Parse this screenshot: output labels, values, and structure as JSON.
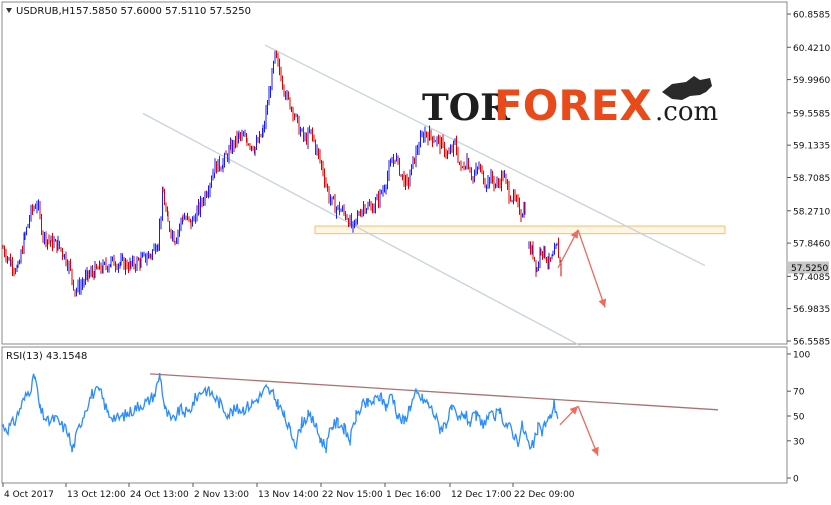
{
  "chart_data": [
    {
      "type": "candlestick",
      "symbol_header": "USDRUB,H1",
      "ohlc_label": "57.5850 57.6000 57.5110 57.5250",
      "y_ticks": [
        "60.8585",
        "60.4210",
        "59.9960",
        "59.5585",
        "59.1335",
        "58.7085",
        "58.2710",
        "57.8460",
        "57.4085",
        "56.9835",
        "56.5585"
      ],
      "y_values": [
        60.8585,
        60.421,
        59.996,
        59.5585,
        59.1335,
        58.7085,
        58.271,
        57.846,
        57.4085,
        56.9835,
        56.5585
      ],
      "current_price": "57.5250",
      "current_value": 57.525,
      "price_path": [
        [
          0,
          57.78
        ],
        [
          8,
          57.58
        ],
        [
          15,
          57.5
        ],
        [
          22,
          57.95
        ],
        [
          28,
          58.25
        ],
        [
          34,
          58.38
        ],
        [
          40,
          57.95
        ],
        [
          48,
          57.86
        ],
        [
          55,
          57.82
        ],
        [
          60,
          57.72
        ],
        [
          66,
          57.55
        ],
        [
          72,
          57.22
        ],
        [
          78,
          57.3
        ],
        [
          85,
          57.42
        ],
        [
          92,
          57.48
        ],
        [
          100,
          57.52
        ],
        [
          108,
          57.6
        ],
        [
          118,
          57.58
        ],
        [
          128,
          57.55
        ],
        [
          138,
          57.62
        ],
        [
          148,
          57.7
        ],
        [
          155,
          57.88
        ],
        [
          160,
          58.5
        ],
        [
          165,
          58.1
        ],
        [
          172,
          57.9
        ],
        [
          180,
          58.2
        ],
        [
          188,
          58.1
        ],
        [
          196,
          58.3
        ],
        [
          204,
          58.55
        ],
        [
          212,
          58.85
        ],
        [
          220,
          58.9
        ],
        [
          228,
          59.1
        ],
        [
          236,
          59.25
        ],
        [
          244,
          59.2
        ],
        [
          252,
          59.1
        ],
        [
          260,
          59.3
        ],
        [
          266,
          59.8
        ],
        [
          272,
          60.3
        ],
        [
          278,
          60.05
        ],
        [
          284,
          59.75
        ],
        [
          290,
          59.6
        ],
        [
          296,
          59.35
        ],
        [
          302,
          59.2
        ],
        [
          308,
          59.3
        ],
        [
          314,
          59.05
        ],
        [
          320,
          58.8
        ],
        [
          326,
          58.45
        ],
        [
          332,
          58.32
        ],
        [
          338,
          58.28
        ],
        [
          344,
          58.2
        ],
        [
          350,
          58.02
        ],
        [
          356,
          58.25
        ],
        [
          362,
          58.35
        ],
        [
          368,
          58.3
        ],
        [
          374,
          58.4
        ],
        [
          380,
          58.55
        ],
        [
          386,
          58.8
        ],
        [
          392,
          59.0
        ],
        [
          398,
          58.75
        ],
        [
          404,
          58.6
        ],
        [
          410,
          58.9
        ],
        [
          416,
          59.15
        ],
        [
          422,
          59.3
        ],
        [
          428,
          59.25
        ],
        [
          434,
          59.2
        ],
        [
          440,
          59.1
        ],
        [
          446,
          59.0
        ],
        [
          452,
          59.15
        ],
        [
          458,
          58.8
        ],
        [
          464,
          58.95
        ],
        [
          470,
          58.7
        ],
        [
          476,
          58.85
        ],
        [
          482,
          58.65
        ],
        [
          488,
          58.7
        ],
        [
          494,
          58.6
        ],
        [
          500,
          58.75
        ],
        [
          506,
          58.5
        ],
        [
          512,
          58.4
        ],
        [
          518,
          58.25
        ],
        [
          522,
          58.32
        ]
      ],
      "price_path_2": [
        [
          526,
          57.78
        ],
        [
          530,
          57.72
        ],
        [
          534,
          57.5
        ],
        [
          538,
          57.8
        ],
        [
          542,
          57.7
        ],
        [
          546,
          57.58
        ],
        [
          550,
          57.65
        ],
        [
          554,
          57.8
        ],
        [
          558,
          57.52
        ]
      ],
      "x_ticks": [
        "4 Oct 2017",
        "13 Oct 12:00",
        "24 Oct 13:00",
        "2 Nov 13:00",
        "13 Nov 14:00",
        "22 Nov 15:00",
        "1 Dec 16:00",
        "12 Dec 17:00",
        "22 Dec 09:00"
      ],
      "channel_upper": [
        [
          265,
          60.45
        ],
        [
          705,
          57.55
        ]
      ],
      "channel_lower": [
        [
          143,
          59.55
        ],
        [
          580,
          56.5
        ]
      ],
      "resistance_zone": {
        "from": 57.97,
        "to": 58.07,
        "x_from": 315,
        "x_to": 725
      },
      "forecast_arrows": [
        [
          [
            558,
            57.52
          ],
          [
            578,
            58.02
          ]
        ],
        [
          [
            578,
            58.02
          ],
          [
            605,
            57.0
          ]
        ]
      ]
    },
    {
      "type": "line",
      "label": "RSI(13) 43.1548",
      "y_ticks": [
        "100",
        "70",
        "50",
        "30",
        "0"
      ],
      "y_values": [
        100,
        70,
        50,
        30,
        0
      ],
      "rsi_path": [
        [
          2,
          42
        ],
        [
          8,
          40
        ],
        [
          15,
          46
        ],
        [
          22,
          60
        ],
        [
          30,
          72
        ],
        [
          35,
          82
        ],
        [
          40,
          55
        ],
        [
          48,
          45
        ],
        [
          55,
          48
        ],
        [
          62,
          42
        ],
        [
          68,
          38
        ],
        [
          72,
          22
        ],
        [
          78,
          38
        ],
        [
          85,
          55
        ],
        [
          92,
          68
        ],
        [
          100,
          70
        ],
        [
          108,
          52
        ],
        [
          118,
          48
        ],
        [
          128,
          52
        ],
        [
          138,
          58
        ],
        [
          148,
          62
        ],
        [
          155,
          68
        ],
        [
          160,
          84
        ],
        [
          165,
          55
        ],
        [
          172,
          45
        ],
        [
          180,
          55
        ],
        [
          188,
          52
        ],
        [
          196,
          65
        ],
        [
          204,
          72
        ],
        [
          212,
          68
        ],
        [
          220,
          60
        ],
        [
          228,
          52
        ],
        [
          236,
          55
        ],
        [
          244,
          56
        ],
        [
          252,
          60
        ],
        [
          260,
          66
        ],
        [
          266,
          72
        ],
        [
          272,
          68
        ],
        [
          278,
          60
        ],
        [
          284,
          50
        ],
        [
          290,
          38
        ],
        [
          296,
          28
        ],
        [
          302,
          45
        ],
        [
          308,
          50
        ],
        [
          314,
          45
        ],
        [
          320,
          32
        ],
        [
          326,
          25
        ],
        [
          332,
          42
        ],
        [
          338,
          45
        ],
        [
          344,
          40
        ],
        [
          350,
          30
        ],
        [
          356,
          50
        ],
        [
          362,
          58
        ],
        [
          368,
          60
        ],
        [
          374,
          62
        ],
        [
          380,
          66
        ],
        [
          386,
          58
        ],
        [
          392,
          68
        ],
        [
          398,
          50
        ],
        [
          404,
          45
        ],
        [
          410,
          58
        ],
        [
          416,
          68
        ],
        [
          422,
          64
        ],
        [
          428,
          60
        ],
        [
          434,
          52
        ],
        [
          440,
          40
        ],
        [
          446,
          44
        ],
        [
          452,
          56
        ],
        [
          458,
          46
        ],
        [
          464,
          52
        ],
        [
          470,
          45
        ],
        [
          476,
          50
        ],
        [
          482,
          44
        ],
        [
          488,
          48
        ],
        [
          494,
          50
        ],
        [
          500,
          52
        ],
        [
          506,
          44
        ],
        [
          512,
          38
        ],
        [
          518,
          30
        ],
        [
          522,
          42
        ],
        [
          526,
          35
        ],
        [
          530,
          22
        ],
        [
          534,
          28
        ],
        [
          538,
          40
        ],
        [
          542,
          38
        ],
        [
          546,
          45
        ],
        [
          550,
          48
        ],
        [
          554,
          60
        ],
        [
          558,
          50
        ]
      ],
      "trend_line": [
        [
          150,
          84
        ],
        [
          718,
          55
        ]
      ],
      "forecast_arrows": [
        [
          [
            560,
            43
          ],
          [
            578,
            58
          ]
        ],
        [
          [
            578,
            58
          ],
          [
            598,
            18
          ]
        ]
      ]
    }
  ],
  "watermark": {
    "part1": "TOR",
    "part2": "FOREX",
    "part3": ".com"
  },
  "colors": {
    "bull": "#1a1aff",
    "bear": "#e00000",
    "rsi": "#2a8cff",
    "channel": "#c8d2dc",
    "rsi_trend": "#b07070",
    "arrow": "#ee6a5a",
    "zone_border": "#f0c070",
    "zone_fill": "#fff6e4",
    "grid": "#8a8a8a",
    "current_price_bg": "#c8c8c8"
  }
}
